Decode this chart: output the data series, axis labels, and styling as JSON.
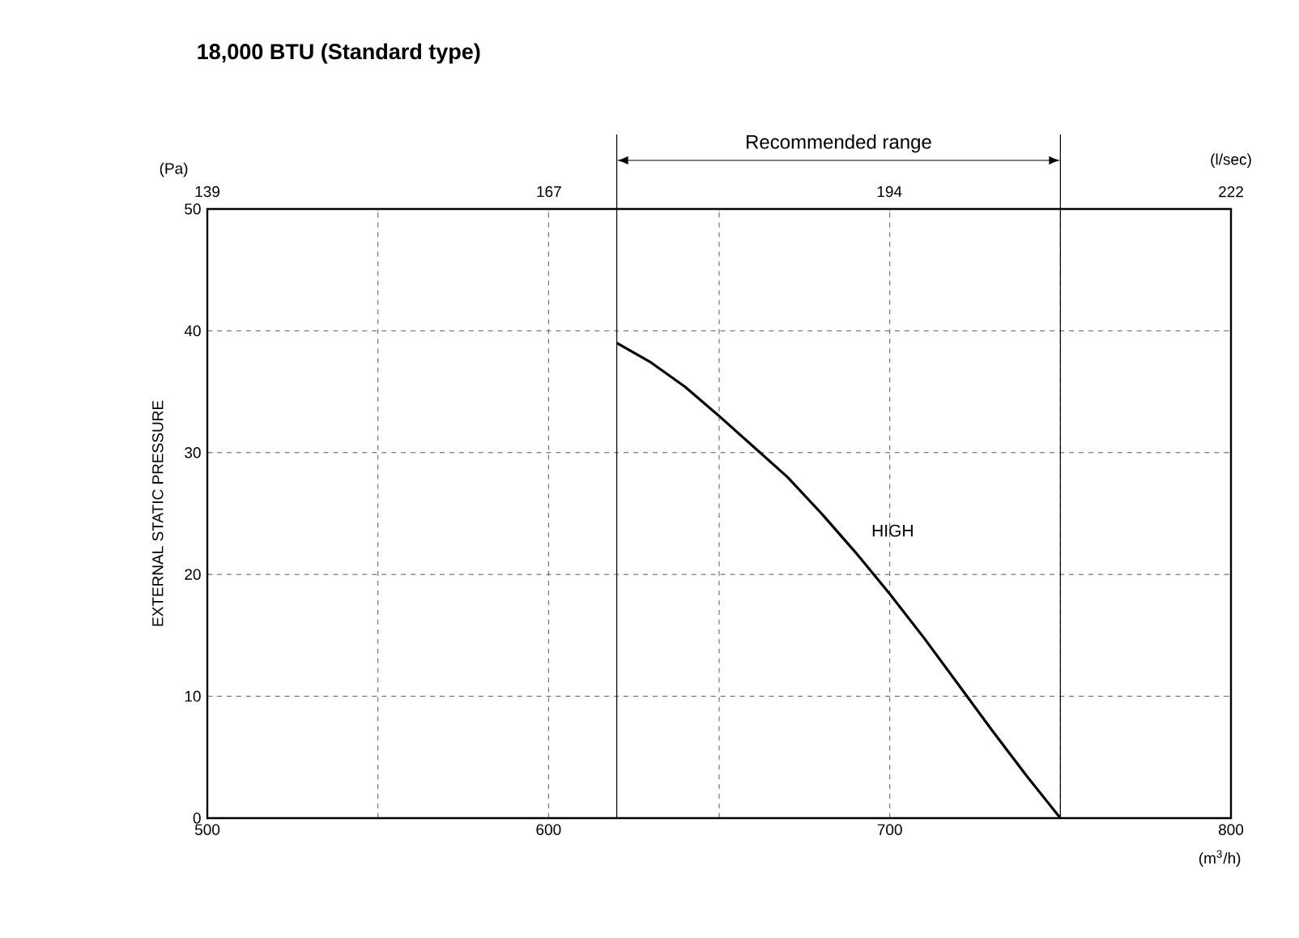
{
  "chart_data": {
    "type": "line",
    "title": "18,000 BTU (Standard type)",
    "ylabel": "EXTERNAL STATIC PRESSURE",
    "xlabel": "(m$^{3}$/h)",
    "x2label": "(l/sec)",
    "annotations": [
      "(Pa)",
      "Recommended range"
    ],
    "x": [
      620,
      630,
      640,
      650,
      660,
      670,
      680,
      690,
      700,
      710,
      720,
      730,
      740,
      750
    ],
    "series": [
      {
        "name": "HIGH",
        "color": "#000000",
        "values": [
          39,
          37.4,
          35.4,
          33,
          30.5,
          28,
          25,
          21.8,
          18.4,
          14.8,
          11,
          7.2,
          3.5,
          0
        ]
      }
    ],
    "xlim": [
      500,
      800
    ],
    "xticks": [
      500,
      {
        "value": 550,
        "label": null
      },
      600,
      {
        "value": 650,
        "label": null
      },
      700,
      {
        "value": 750,
        "label": null
      },
      800
    ],
    "x2lim": [
      138.9,
      222.2
    ],
    "x2ticks": [
      {
        "value": 138.9,
        "label": "139"
      },
      {
        "value": 166.7,
        "label": "167"
      },
      {
        "value": 194.4,
        "label": "194"
      },
      {
        "value": 222.2,
        "label": "222"
      }
    ],
    "ylim": [
      0,
      50
    ],
    "yticks": [
      0,
      10,
      20,
      30,
      40,
      50
    ],
    "ref_lines": [
      {
        "axis": "x",
        "value": 620,
        "color": "#000000"
      },
      {
        "axis": "x",
        "value": 750,
        "color": "#000000"
      }
    ],
    "grid": true,
    "marker": "none",
    "line_style": "solid"
  }
}
